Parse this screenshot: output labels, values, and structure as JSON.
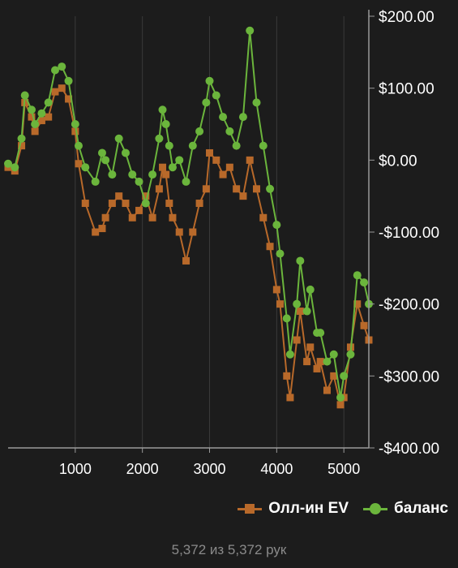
{
  "chart_data": {
    "type": "line",
    "x_ticks": [
      1000,
      2000,
      3000,
      4000,
      5000
    ],
    "x_tick_labels": [
      "1000",
      "2000",
      "3000",
      "4000",
      "5000"
    ],
    "xlim": [
      0,
      5372
    ],
    "y_ticks": [
      200,
      100,
      0,
      -100,
      -200,
      -300,
      -400
    ],
    "y_tick_labels": [
      "$200.00",
      "$100.00",
      "$0.00",
      "-$100.00",
      "-$200.00",
      "-$300.00",
      "-$400.00"
    ],
    "ylim": [
      -400,
      200
    ],
    "grid": "vertical",
    "legend_position": "bottom-right",
    "series": [
      {
        "name": "Олл-ин EV",
        "color": "#b8692a",
        "marker": "square",
        "x": [
          0,
          100,
          200,
          250,
          350,
          400,
          500,
          600,
          700,
          800,
          900,
          1000,
          1050,
          1150,
          1300,
          1400,
          1450,
          1550,
          1650,
          1750,
          1850,
          1950,
          2050,
          2150,
          2250,
          2300,
          2350,
          2400,
          2450,
          2550,
          2650,
          2750,
          2850,
          2950,
          3000,
          3100,
          3200,
          3300,
          3400,
          3500,
          3600,
          3700,
          3800,
          3900,
          4000,
          4050,
          4150,
          4200,
          4300,
          4350,
          4450,
          4500,
          4600,
          4650,
          4750,
          4850,
          4950,
          5000,
          5100,
          5200,
          5300,
          5372
        ],
        "y": [
          -10,
          -15,
          20,
          80,
          60,
          40,
          55,
          60,
          95,
          100,
          85,
          40,
          -5,
          -60,
          -100,
          -95,
          -80,
          -60,
          -50,
          -60,
          -80,
          -70,
          -50,
          -80,
          -40,
          -10,
          -20,
          -60,
          -80,
          -100,
          -140,
          -100,
          -60,
          -40,
          10,
          0,
          -20,
          -10,
          -40,
          -50,
          0,
          -40,
          -80,
          -120,
          -180,
          -200,
          -300,
          -330,
          -250,
          -210,
          -280,
          -260,
          -290,
          -280,
          -320,
          -300,
          -340,
          -330,
          -260,
          -200,
          -230,
          -250
        ]
      },
      {
        "name": "баланс",
        "color": "#6bb53c",
        "marker": "circle",
        "x": [
          0,
          100,
          200,
          250,
          350,
          400,
          500,
          600,
          700,
          800,
          900,
          1000,
          1050,
          1150,
          1300,
          1400,
          1450,
          1550,
          1650,
          1750,
          1850,
          1950,
          2050,
          2150,
          2250,
          2300,
          2350,
          2400,
          2450,
          2550,
          2650,
          2750,
          2850,
          2950,
          3000,
          3100,
          3200,
          3300,
          3400,
          3500,
          3600,
          3700,
          3800,
          3900,
          4000,
          4050,
          4150,
          4200,
          4300,
          4350,
          4450,
          4500,
          4600,
          4650,
          4750,
          4850,
          4950,
          5000,
          5100,
          5200,
          5300,
          5372
        ],
        "y": [
          -5,
          -10,
          30,
          90,
          70,
          50,
          65,
          80,
          125,
          130,
          110,
          50,
          20,
          -10,
          -30,
          10,
          0,
          -20,
          30,
          10,
          -20,
          -30,
          -60,
          -20,
          30,
          70,
          50,
          20,
          -10,
          0,
          -30,
          20,
          40,
          80,
          110,
          90,
          60,
          40,
          20,
          60,
          180,
          80,
          20,
          -40,
          -90,
          -130,
          -220,
          -270,
          -200,
          -140,
          -210,
          -180,
          -240,
          -240,
          -280,
          -270,
          -330,
          -300,
          -270,
          -160,
          -170,
          -200
        ]
      }
    ]
  },
  "legend": {
    "items": [
      "Олл-ин EV",
      "баланс"
    ]
  },
  "footer": {
    "text": "5,372 из 5,372 рук"
  }
}
